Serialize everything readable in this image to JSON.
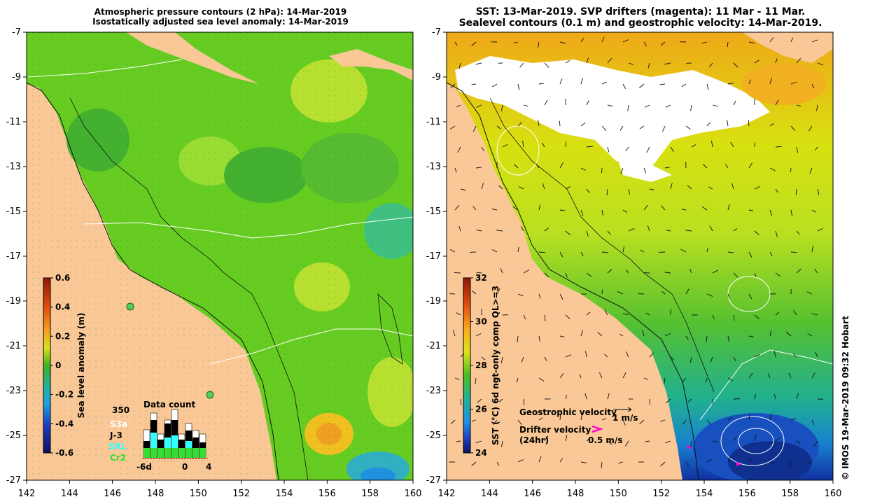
{
  "left_panel": {
    "title_line1": "Atmospheric pressure contours (2 hPa): 14-Mar-2019",
    "title_line2": "Isostatically adjusted sea level anomaly: 14-Mar-2019",
    "colorbar_label": "Sea level anomaly (m)",
    "colorbar_ticks": [
      "0.6",
      "0.4",
      "0.2",
      "0",
      "-0.2",
      "-0.4",
      "-0.6"
    ],
    "data_count_title": "Data count",
    "data_count_max": "350",
    "missions": [
      {
        "name": "S3a",
        "color": "#ffffff"
      },
      {
        "name": "J-3",
        "color": "#000000"
      },
      {
        "name": "SRL",
        "color": "#33ffff"
      },
      {
        "name": "Cr2",
        "color": "#33dd33"
      }
    ],
    "data_count_x_ticks": [
      "-6d",
      "0",
      "4"
    ]
  },
  "right_panel": {
    "title_line1": "SST: 13-Mar-2019. SVP drifters (magenta): 11 Mar - 11 Mar.",
    "title_line2": "Sealevel contours (0.1 m) and geostrophic velocity: 14-Mar-2019.",
    "colorbar_label": "SST (°C) 6d ngt-only comp QL>=3",
    "colorbar_ticks": [
      "32",
      "30",
      "28",
      "26",
      "24"
    ],
    "geostrophic_label": "Geostrophic velocity",
    "geostrophic_scale": "1 m/s",
    "drifter_label_line1": "Drifter velocity",
    "drifter_label_line2": "(24hr)",
    "drifter_scale": "0.5 m/s"
  },
  "axes": {
    "lat_ticks": [
      "-7",
      "-9",
      "-11",
      "-13",
      "-15",
      "-17",
      "-19",
      "-21",
      "-23",
      "-25",
      "-27"
    ],
    "lon_ticks": [
      "142",
      "144",
      "146",
      "148",
      "150",
      "152",
      "154",
      "156",
      "158",
      "160"
    ]
  },
  "credit": "© IMOS 19-Mar-2019 09:32 Hobart",
  "colors": {
    "land": "#fac896",
    "ocean_green": "#66cc22",
    "ocean_light": "#99e033",
    "ocean_dark": "#33aa33",
    "cloud": "#ffffff"
  }
}
